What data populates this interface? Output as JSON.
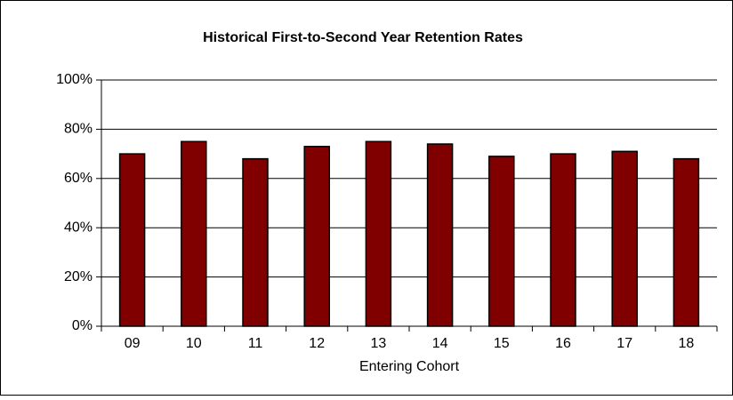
{
  "chart_data": {
    "type": "bar",
    "title": "Historical First-to-Second Year Retention Rates",
    "x_label": "Entering Cohort",
    "categories": [
      "09",
      "10",
      "11",
      "12",
      "13",
      "14",
      "15",
      "16",
      "17",
      "18"
    ],
    "values": [
      70,
      75,
      68,
      73,
      75,
      74,
      69,
      70,
      71,
      68
    ],
    "color": "#800000",
    "ylim": [
      0,
      100
    ],
    "yticks": [
      {
        "value": 0,
        "label": "0%"
      },
      {
        "value": 20,
        "label": "20%"
      },
      {
        "value": 40,
        "label": "40%"
      },
      {
        "value": 60,
        "label": "60%"
      },
      {
        "value": 80,
        "label": "80%"
      },
      {
        "value": 100,
        "label": "100%"
      }
    ],
    "grid": true
  }
}
